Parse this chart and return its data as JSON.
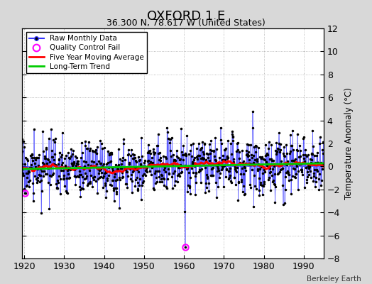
{
  "title": "OXFORD 1 E",
  "subtitle": "36.300 N, 78.617 W (United States)",
  "ylabel": "Temperature Anomaly (°C)",
  "credit": "Berkeley Earth",
  "year_start": 1919,
  "year_end": 1994,
  "ylim": [
    -8,
    12
  ],
  "yticks": [
    -8,
    -6,
    -4,
    -2,
    0,
    2,
    4,
    6,
    8,
    10,
    12
  ],
  "xticks": [
    1920,
    1930,
    1940,
    1950,
    1960,
    1970,
    1980,
    1990
  ],
  "bg_color": "#d8d8d8",
  "plot_bg_color": "#ffffff",
  "raw_line_color": "#3333ff",
  "raw_dot_color": "#000000",
  "qc_color": "#ff00ff",
  "moving_avg_color": "#ff0000",
  "trend_color": "#00cc00",
  "seed": 17
}
